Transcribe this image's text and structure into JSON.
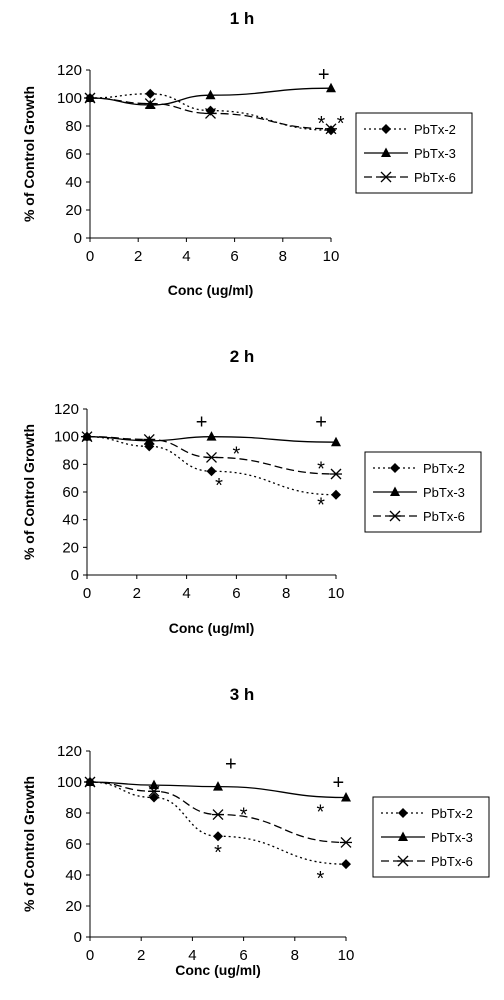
{
  "chart_data": [
    {
      "type": "line",
      "title": "1 h",
      "xlabel": "Conc (ug/ml)",
      "ylabel": "% of Control Growth",
      "xlim": [
        0,
        10
      ],
      "ylim": [
        0,
        120
      ],
      "xticks": [
        0,
        2,
        4,
        6,
        8,
        10
      ],
      "yticks": [
        0,
        20,
        40,
        60,
        80,
        100,
        120
      ],
      "legend_position": "right",
      "series": [
        {
          "name": "PbTx-2",
          "style": "dotted",
          "marker": "diamond",
          "points": [
            [
              0,
              100
            ],
            [
              2.5,
              103
            ],
            [
              5,
              91
            ],
            [
              10,
              77
            ]
          ]
        },
        {
          "name": "PbTx-3",
          "style": "solid",
          "marker": "triangle",
          "points": [
            [
              0,
              100
            ],
            [
              2.5,
              95
            ],
            [
              5,
              102
            ],
            [
              10,
              107
            ]
          ]
        },
        {
          "name": "PbTx-6",
          "style": "dashed",
          "marker": "star",
          "points": [
            [
              0,
              100
            ],
            [
              2.5,
              96
            ],
            [
              5,
              89
            ],
            [
              10,
              78
            ]
          ]
        }
      ],
      "annotations": [
        {
          "text": "+",
          "x": 9.7,
          "y": 117
        },
        {
          "text": "*",
          "x": 9.6,
          "y": 82
        },
        {
          "text": "*",
          "x": 10.4,
          "y": 82
        }
      ]
    },
    {
      "type": "line",
      "title": "2 h",
      "xlabel": "Conc (ug/ml)",
      "ylabel": "% of Control Growth",
      "xlim": [
        0,
        10
      ],
      "ylim": [
        0,
        120
      ],
      "xticks": [
        0,
        2,
        4,
        6,
        8,
        10
      ],
      "yticks": [
        0,
        20,
        40,
        60,
        80,
        100,
        120
      ],
      "legend_position": "right",
      "series": [
        {
          "name": "PbTx-2",
          "style": "dotted",
          "marker": "diamond",
          "points": [
            [
              0,
              100
            ],
            [
              2.5,
              93
            ],
            [
              5,
              75
            ],
            [
              10,
              58
            ]
          ]
        },
        {
          "name": "PbTx-3",
          "style": "solid",
          "marker": "triangle",
          "points": [
            [
              0,
              100
            ],
            [
              2.5,
              97
            ],
            [
              5,
              100
            ],
            [
              10,
              96
            ]
          ]
        },
        {
          "name": "PbTx-6",
          "style": "dashed",
          "marker": "star",
          "points": [
            [
              0,
              100
            ],
            [
              2.5,
              98
            ],
            [
              5,
              85
            ],
            [
              10,
              73
            ]
          ]
        }
      ],
      "annotations": [
        {
          "text": "+",
          "x": 4.6,
          "y": 111
        },
        {
          "text": "+",
          "x": 9.4,
          "y": 111
        },
        {
          "text": "*",
          "x": 6.0,
          "y": 88
        },
        {
          "text": "*",
          "x": 5.3,
          "y": 65
        },
        {
          "text": "*",
          "x": 9.4,
          "y": 77
        },
        {
          "text": "*",
          "x": 9.4,
          "y": 51
        }
      ]
    },
    {
      "type": "line",
      "title": "3 h",
      "xlabel": "Conc (ug/ml)",
      "ylabel": "% of Control Growth",
      "xlim": [
        0,
        10
      ],
      "ylim": [
        0,
        120
      ],
      "xticks": [
        0,
        2,
        4,
        6,
        8,
        10
      ],
      "yticks": [
        0,
        20,
        40,
        60,
        80,
        100,
        120
      ],
      "legend_position": "right",
      "series": [
        {
          "name": "PbTx-2",
          "style": "dotted",
          "marker": "diamond",
          "points": [
            [
              0,
              100
            ],
            [
              2.5,
              90
            ],
            [
              5,
              65
            ],
            [
              10,
              47
            ]
          ]
        },
        {
          "name": "PbTx-3",
          "style": "solid",
          "marker": "triangle",
          "points": [
            [
              0,
              100
            ],
            [
              2.5,
              98
            ],
            [
              5,
              97
            ],
            [
              10,
              90
            ]
          ]
        },
        {
          "name": "PbTx-6",
          "style": "dashed",
          "marker": "star",
          "points": [
            [
              0,
              100
            ],
            [
              2.5,
              94
            ],
            [
              5,
              79
            ],
            [
              10,
              61
            ]
          ]
        }
      ],
      "annotations": [
        {
          "text": "+",
          "x": 5.5,
          "y": 112
        },
        {
          "text": "+",
          "x": 9.7,
          "y": 100
        },
        {
          "text": "*",
          "x": 6.0,
          "y": 79
        },
        {
          "text": "*",
          "x": 9.0,
          "y": 81
        },
        {
          "text": "*",
          "x": 5.0,
          "y": 55
        },
        {
          "text": "*",
          "x": 9.0,
          "y": 38
        }
      ]
    }
  ]
}
